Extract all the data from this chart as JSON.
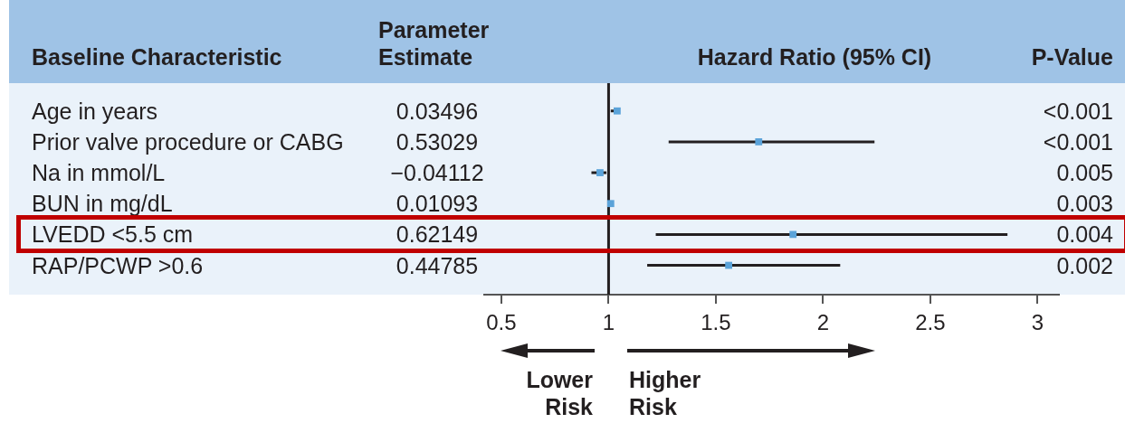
{
  "chart_data": {
    "type": "scatter",
    "orientation": "horizontal",
    "xlabel": "Hazard Ratio (95% CI)",
    "ylabel": "Baseline Characteristic",
    "categories": [
      "Age in years",
      "Prior valve procedure or CABG",
      "Na in mmol/L",
      "BUN in mg/dL",
      "LVEDD <5.5 cm",
      "RAP/PCWP >0.6"
    ],
    "values": [
      1.04,
      1.7,
      0.96,
      1.01,
      1.86,
      1.56
    ],
    "errors": [
      [
        1.01,
        1.05
      ],
      [
        1.28,
        2.24
      ],
      [
        0.92,
        0.99
      ],
      [
        1.0,
        1.02
      ],
      [
        1.22,
        2.86
      ],
      [
        1.18,
        2.08
      ]
    ],
    "color": "#5ba3d9",
    "marker": "square",
    "xlim": [
      0.42,
      3.1
    ],
    "xticks": [
      0.5,
      1,
      1.5,
      2,
      2.5,
      3
    ],
    "ref_lines": [
      {
        "axis": "x",
        "value": 1,
        "color": "#231f20"
      }
    ],
    "annotations": [
      "Parameter Estimate",
      "P-Value",
      "0.03496",
      "0.53029",
      "−0.04112",
      "0.01093",
      "0.62149",
      "0.44785",
      "<0.001",
      "<0.001",
      "0.005",
      "0.003",
      "0.004",
      "0.002",
      "Lower Risk",
      "Higher Risk"
    ]
  }
}
